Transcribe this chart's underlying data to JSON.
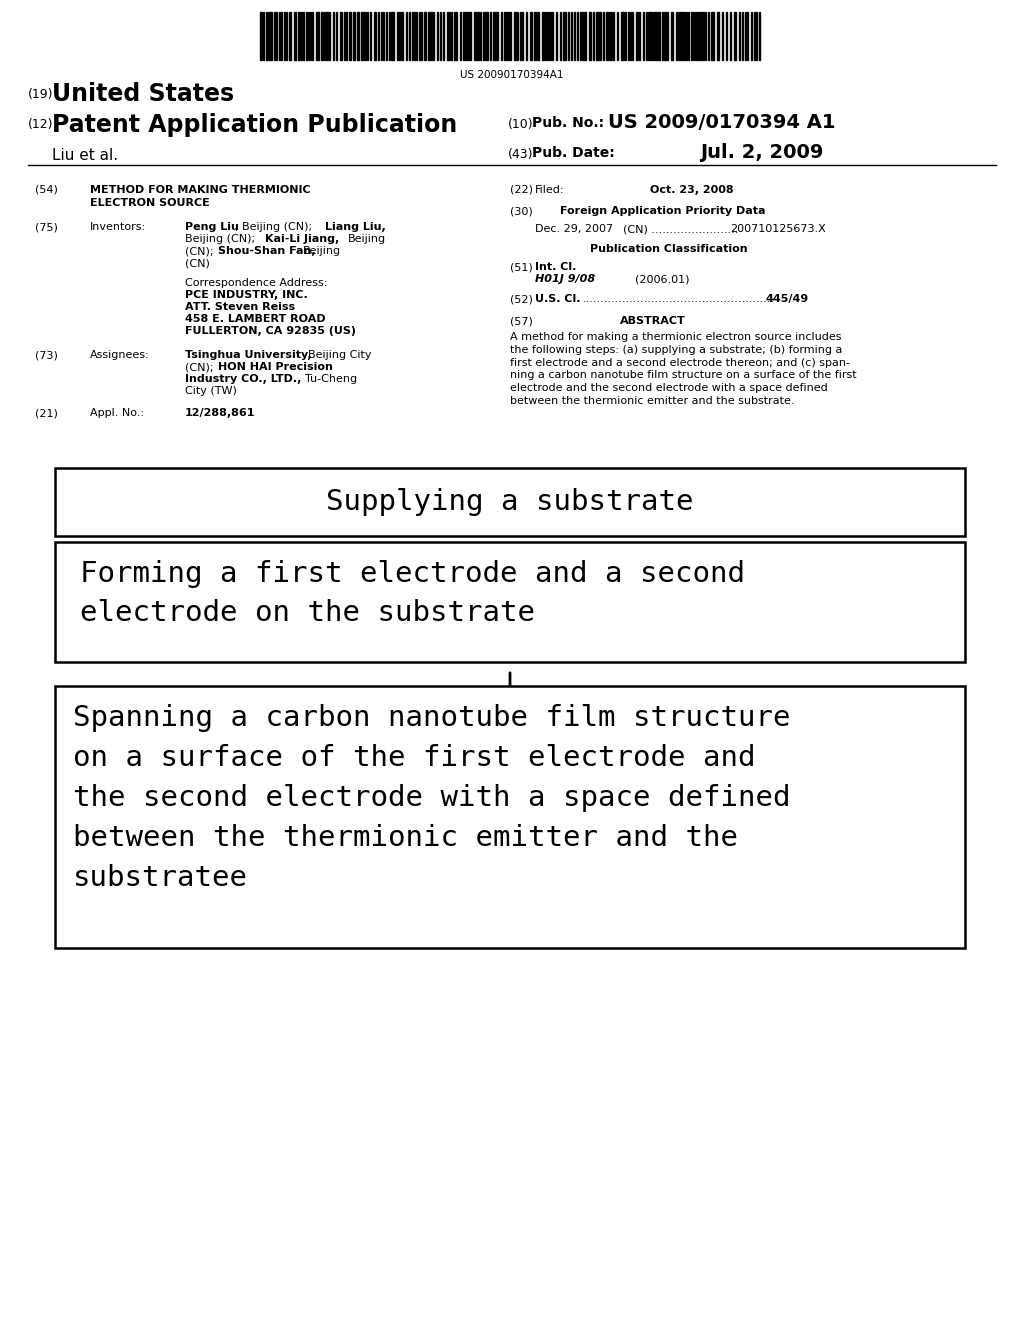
{
  "background_color": "#ffffff",
  "barcode_text": "US 20090170394A1",
  "flowchart": {
    "box1_text": "Supplying a substrate",
    "box2_text": "Forming a first electrode and a second\nelectrode on the substrate",
    "box3_text": "Spanning a carbon nanotube film structure\non a surface of the first electrode and\nthe second electrode with a space defined\nbetween the thermionic emitter and the\nsubstratee"
  }
}
